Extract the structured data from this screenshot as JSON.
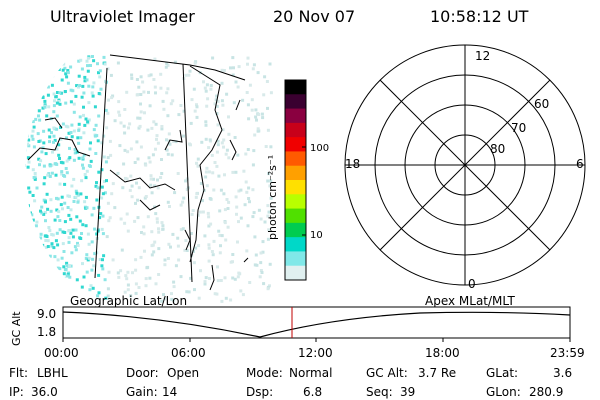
{
  "header": {
    "title": "Ultraviolet Imager",
    "date": "20 Nov 07",
    "time": "10:58:12 UT"
  },
  "colorbar": {
    "label": "photon cm⁻²s⁻¹",
    "ticks": [
      "100",
      "10"
    ],
    "colors": [
      "#000000",
      "#3a0030",
      "#8a0040",
      "#c8001a",
      "#f00000",
      "#ff5a00",
      "#ffa000",
      "#ffe000",
      "#b8ff00",
      "#50e000",
      "#00cc50",
      "#00d8c8",
      "#80e8e8",
      "#e0f0f0"
    ]
  },
  "polar": {
    "hour_labels": [
      "12",
      "18",
      "6",
      "0"
    ],
    "lat_labels": [
      "60",
      "70",
      "80"
    ]
  },
  "timeline": {
    "left_title": "Geographic Lat/Lon",
    "right_title": "Apex MLat/MLT",
    "y_axis_label": "GC Alt",
    "y_ticks": [
      "9.0",
      "1.8"
    ],
    "x_ticks": [
      "00:00",
      "06:00",
      "12:00",
      "18:00",
      "23:59"
    ]
  },
  "info": {
    "flt_label": "Flt:",
    "flt_value": "LBHL",
    "door_label": "Door:",
    "door_value": "Open",
    "mode_label": "Mode:",
    "mode_value": "Normal",
    "gcalt_label": "GC Alt:",
    "gcalt_value": "3.7 Re",
    "glat_label": "GLat:",
    "glat_value": "3.6",
    "ip_label": "IP:",
    "ip_value": "36.0",
    "gain_label": "Gain:",
    "gain_value": "14",
    "dsp_label": "Dsp:",
    "dsp_value": "6.8",
    "seq_label": "Seq:",
    "seq_value": "39",
    "glon_label": "GLon:",
    "glon_value": "280.9"
  }
}
